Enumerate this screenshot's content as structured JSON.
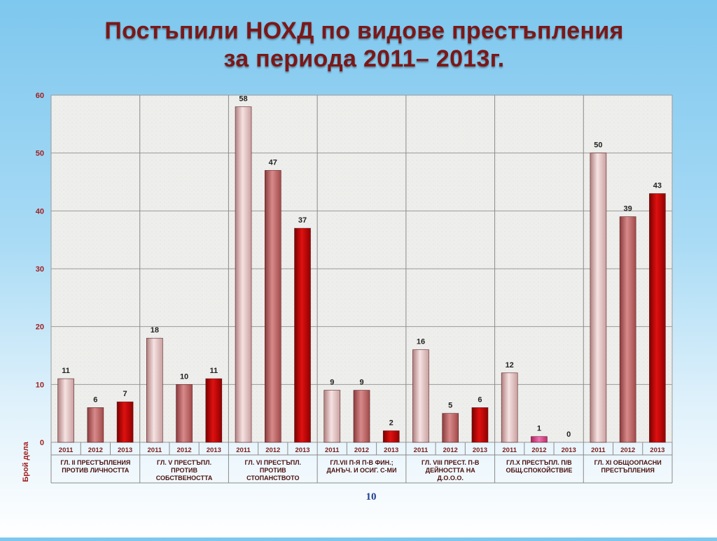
{
  "title": {
    "line1": "Постъпили НОХД по видове престъпления",
    "line2": "за периода 2011– 2013г."
  },
  "slide_number": "10",
  "colors": {
    "title": "#7a1818",
    "axis_text": "#a12020",
    "year_2011": "#e8c8c8",
    "year_2012": "#c46b6b",
    "year_2013": "#c00000",
    "year_2012_small": "#e0308a"
  },
  "chart_data": {
    "type": "bar",
    "ylabel": "Брой дела",
    "ylim": [
      0,
      60
    ],
    "yticks": [
      0,
      10,
      20,
      30,
      40,
      50,
      60
    ],
    "years": [
      "2011",
      "2012",
      "2013"
    ],
    "groups": [
      {
        "label": [
          "ГЛ. II ПРЕСТЪПЛЕНИЯ",
          "ПРОТИВ ЛИЧНОСТТА"
        ],
        "values": [
          11,
          6,
          7
        ]
      },
      {
        "label": [
          "ГЛ. V ПРЕСТЪПЛ.",
          "ПРОТИВ",
          "СОБСТВЕНОСТТА"
        ],
        "values": [
          18,
          10,
          11
        ]
      },
      {
        "label": [
          "ГЛ. VI ПРЕСТЪПЛ.",
          "ПРОТИВ",
          "СТОПАНСТВОТО"
        ],
        "values": [
          58,
          47,
          37
        ]
      },
      {
        "label": [
          "ГЛ.VII П-Я П-В ФИН.;",
          "ДАНЪЧ. И ОСИГ. С-МИ"
        ],
        "values": [
          9,
          9,
          2
        ]
      },
      {
        "label": [
          "ГЛ. VIII ПРЕСТ. П-В",
          "ДЕЙНОСТТА НА",
          "Д.О.О.О."
        ],
        "values": [
          16,
          5,
          6
        ]
      },
      {
        "label": [
          "ГЛ.Х ПРЕСТЪПЛ. П/В",
          "ОБЩ.СПОКОЙСТВИЕ"
        ],
        "values": [
          12,
          1,
          0
        ]
      },
      {
        "label": [
          "ГЛ. XI  ОБЩООПАСНИ",
          "ПРЕСТЪПЛЕНИЯ"
        ],
        "values": [
          50,
          39,
          43
        ]
      }
    ],
    "grid": true
  }
}
